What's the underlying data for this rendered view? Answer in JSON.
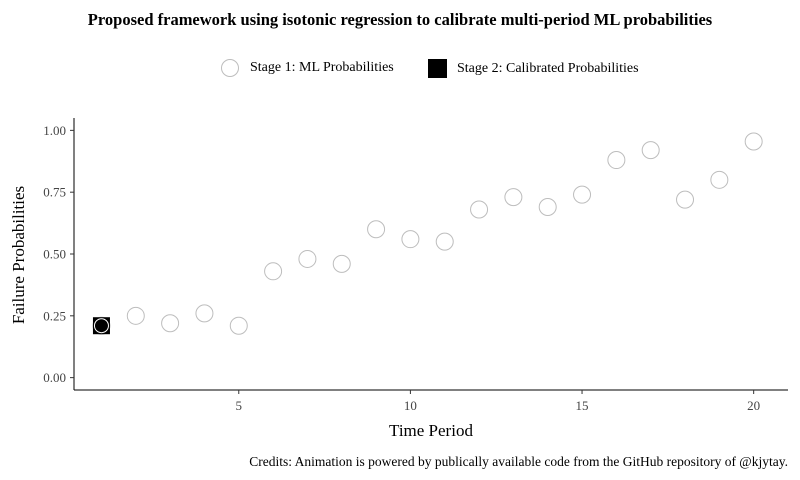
{
  "chart_data": {
    "type": "scatter",
    "title": "Proposed framework using isotonic regression to calibrate multi-period ML probabilities",
    "xlabel": "Time Period",
    "ylabel": "Failure Probabilities",
    "xlim": [
      0.2,
      21
    ],
    "ylim": [
      -0.05,
      1.05
    ],
    "x_ticks": [
      5,
      10,
      15,
      20
    ],
    "y_ticks": [
      0.0,
      0.25,
      0.5,
      0.75,
      1.0
    ],
    "y_tick_labels": [
      "0.00",
      "0.25",
      "0.50",
      "0.75",
      "1.00"
    ],
    "grid": false,
    "legend_position": "top",
    "series": [
      {
        "name": "Stage 1: ML Probabilities",
        "marker": "circle-open",
        "color": "#bdbdbd",
        "x": [
          1,
          2,
          3,
          4,
          5,
          6,
          7,
          8,
          9,
          10,
          11,
          12,
          13,
          14,
          15,
          16,
          17,
          18,
          19,
          20
        ],
        "y": [
          0.21,
          0.25,
          0.22,
          0.26,
          0.21,
          0.43,
          0.48,
          0.46,
          0.6,
          0.56,
          0.55,
          0.68,
          0.73,
          0.69,
          0.74,
          0.88,
          0.92,
          0.72,
          0.8,
          0.955
        ]
      },
      {
        "name": "Stage 2: Calibrated Probabilities",
        "marker": "square-filled",
        "color": "#000000",
        "x": [
          1
        ],
        "y": [
          0.21
        ]
      }
    ]
  },
  "credits": "Credits: Animation is powered by publically available code from the GitHub repository of @kjytay."
}
